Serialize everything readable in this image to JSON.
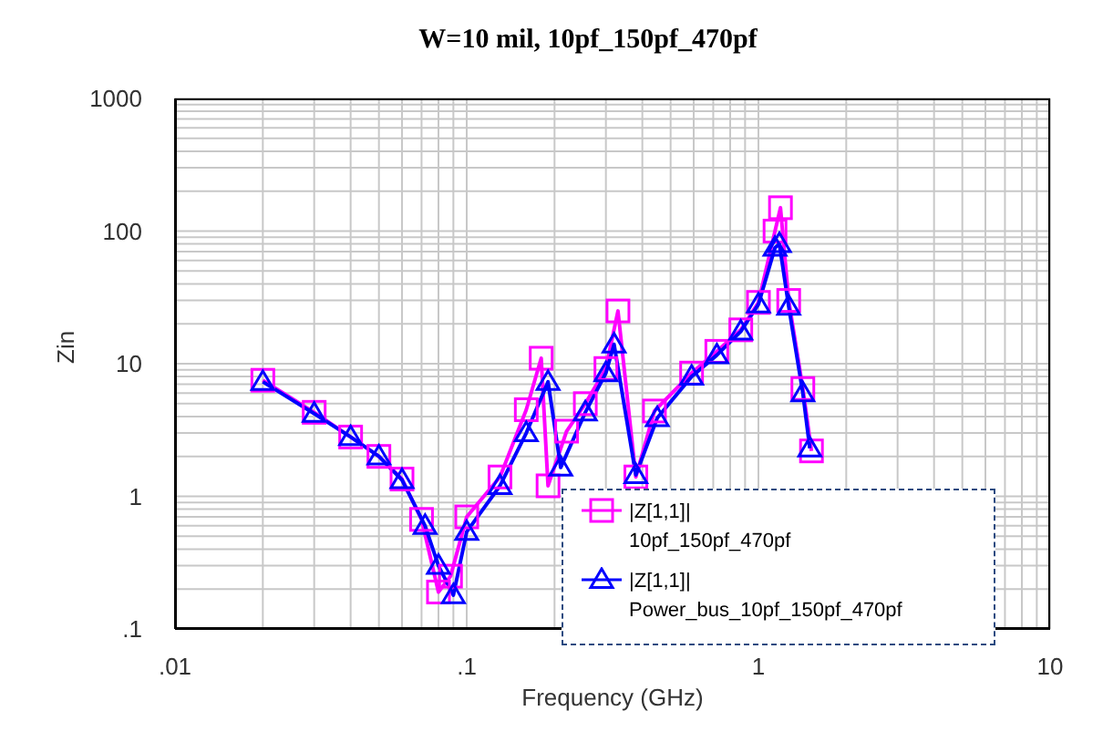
{
  "chart_data": {
    "type": "line",
    "title": "W=10 mil, 10pf_150pf_470pf",
    "xlabel": "Frequency (GHz)",
    "ylabel": "Zin",
    "log": "xy",
    "grid": true,
    "legend": "bottom right",
    "line_style": "solid",
    "xlim": [
      0.01,
      10
    ],
    "xticks": [
      {
        "value": 0.01,
        "label": ".01"
      },
      {
        "value": 0.1,
        "label": ".1"
      },
      1,
      10
    ],
    "ylim": [
      0.1,
      1000
    ],
    "yticks": [
      {
        "value": 0.1,
        "label": ".1"
      },
      1,
      10,
      100,
      1000
    ],
    "series": [
      {
        "name": "|Z[1,1]|\n10pf_150pf_470pf",
        "color": "#ff00ff",
        "marker": "square",
        "x": [
          0.02,
          0.03,
          0.04,
          0.05,
          0.06,
          0.07,
          0.08,
          0.088,
          0.1,
          0.13,
          0.16,
          0.18,
          0.19,
          0.22,
          0.255,
          0.3,
          0.33,
          0.38,
          0.44,
          0.59,
          0.72,
          0.87,
          1.0,
          1.14,
          1.19,
          1.27,
          1.42,
          1.52
        ],
        "values": [
          7.5,
          4.3,
          2.8,
          2,
          1.35,
          0.67,
          0.19,
          0.25,
          0.7,
          1.4,
          4.5,
          11,
          1.2,
          3.1,
          5,
          9.2,
          25,
          1.4,
          4.4,
          8.5,
          12.4,
          18,
          29,
          100,
          150,
          30,
          6.5,
          2.2
        ]
      },
      {
        "name": "|Z[1,1]|\nPower_bus_10pf_150pf_470pf",
        "color": "#0000ff",
        "marker": "triangle",
        "x": [
          0.02,
          0.03,
          0.04,
          0.05,
          0.06,
          0.072,
          0.08,
          0.09,
          0.1,
          0.13,
          0.16,
          0.19,
          0.21,
          0.255,
          0.3,
          0.32,
          0.38,
          0.45,
          0.59,
          0.72,
          0.87,
          1.0,
          1.14,
          1.18,
          1.27,
          1.42,
          1.5
        ],
        "values": [
          7.3,
          4.2,
          2.8,
          2,
          1.33,
          0.6,
          0.3,
          0.18,
          0.54,
          1.2,
          3,
          7.3,
          1.65,
          4.3,
          8.5,
          14,
          1.45,
          3.9,
          8,
          11.6,
          17.5,
          28,
          75,
          80,
          27,
          6,
          2.3
        ]
      }
    ]
  }
}
